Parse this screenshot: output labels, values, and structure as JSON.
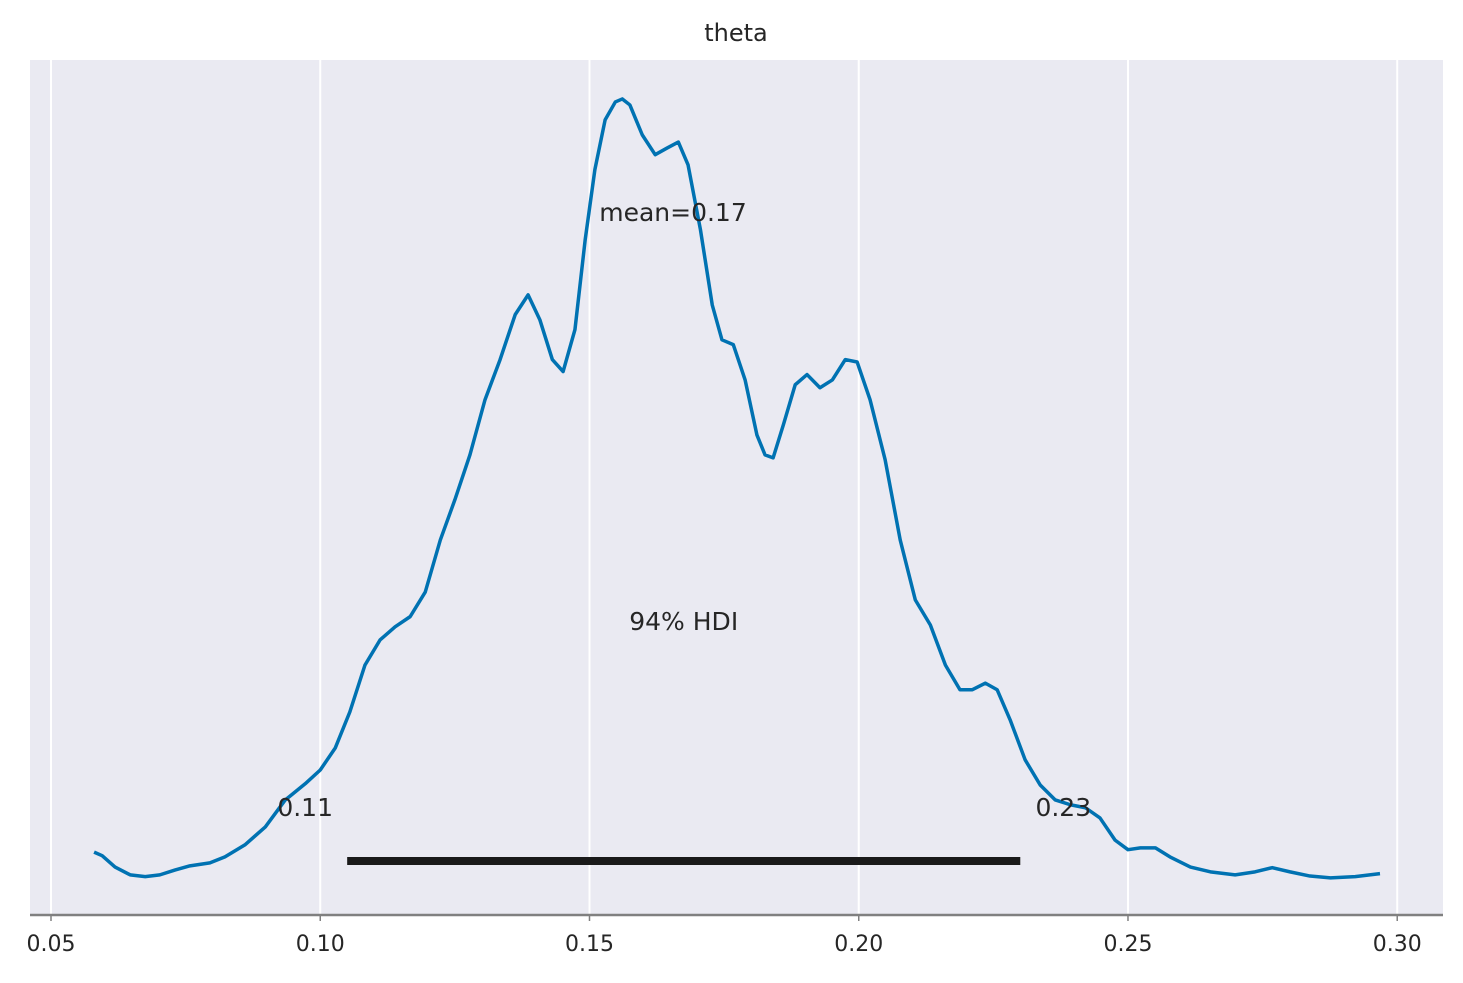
{
  "chart_data": {
    "type": "line",
    "title": "theta",
    "x": [
      0.058,
      0.0595,
      0.0619,
      0.0647,
      0.0675,
      0.0702,
      0.073,
      0.0758,
      0.0795,
      0.0823,
      0.086,
      0.0898,
      0.0935,
      0.0972,
      0.1,
      0.1028,
      0.1055,
      0.1083,
      0.1111,
      0.1139,
      0.1167,
      0.1195,
      0.1223,
      0.125,
      0.1278,
      0.1306,
      0.1334,
      0.1362,
      0.1386,
      0.1408,
      0.1431,
      0.1451,
      0.1473,
      0.1492,
      0.151,
      0.1529,
      0.1548,
      0.1561,
      0.1575,
      0.1598,
      0.1622,
      0.1644,
      0.1665,
      0.1683,
      0.1706,
      0.1728,
      0.1746,
      0.1767,
      0.1789,
      0.1811,
      0.1826,
      0.1841,
      0.186,
      0.1882,
      0.1904,
      0.1928,
      0.1951,
      0.1975,
      0.1997,
      0.2021,
      0.2049,
      0.2077,
      0.2105,
      0.2133,
      0.2161,
      0.2188,
      0.2211,
      0.2235,
      0.2257,
      0.2281,
      0.2309,
      0.2337,
      0.2365,
      0.2393,
      0.2421,
      0.2448,
      0.2476,
      0.25,
      0.2523,
      0.2551,
      0.2578,
      0.2616,
      0.2653,
      0.2699,
      0.2736,
      0.2768,
      0.2801,
      0.2838,
      0.2876,
      0.2922,
      0.2968
    ],
    "values": [
      0.43,
      0.37,
      0.18,
      0.05,
      0.02,
      0.05,
      0.13,
      0.2,
      0.25,
      0.35,
      0.55,
      0.85,
      1.3,
      1.57,
      1.8,
      2.17,
      2.77,
      3.55,
      3.97,
      4.19,
      4.36,
      4.77,
      5.64,
      6.31,
      7.06,
      7.98,
      8.65,
      9.4,
      9.73,
      9.31,
      8.65,
      8.45,
      9.15,
      10.65,
      11.82,
      12.65,
      12.95,
      13.0,
      12.9,
      12.4,
      12.07,
      12.18,
      12.28,
      11.9,
      10.82,
      9.56,
      8.98,
      8.9,
      8.31,
      7.39,
      7.06,
      7.01,
      7.56,
      8.23,
      8.4,
      8.18,
      8.31,
      8.65,
      8.61,
      7.98,
      6.98,
      5.64,
      4.64,
      4.22,
      3.55,
      3.14,
      3.14,
      3.25,
      3.14,
      2.64,
      1.97,
      1.55,
      1.3,
      1.22,
      1.17,
      1.0,
      0.63,
      0.47,
      0.5,
      0.5,
      0.35,
      0.18,
      0.1,
      0.05,
      0.1,
      0.17,
      0.1,
      0.03,
      0.0,
      0.02,
      0.07
    ],
    "color": "#0072b2",
    "xlim": [
      0.0461,
      0.3085
    ],
    "ylim": [
      -0.62,
      13.65
    ],
    "xticks": [
      0.05,
      {
        "value": 0.1,
        "label": "0.10"
      },
      0.15,
      {
        "value": 0.2,
        "label": "0.20"
      },
      0.25,
      {
        "value": 0.3,
        "label": "0.30"
      }
    ],
    "grid": true,
    "mean_label": "mean=0.17",
    "hdi": {
      "label": "94% HDI",
      "values": [
        0.105,
        0.23
      ],
      "value_labels": [
        "0.11",
        "0.23"
      ],
      "color": "#1a1a1a"
    }
  }
}
